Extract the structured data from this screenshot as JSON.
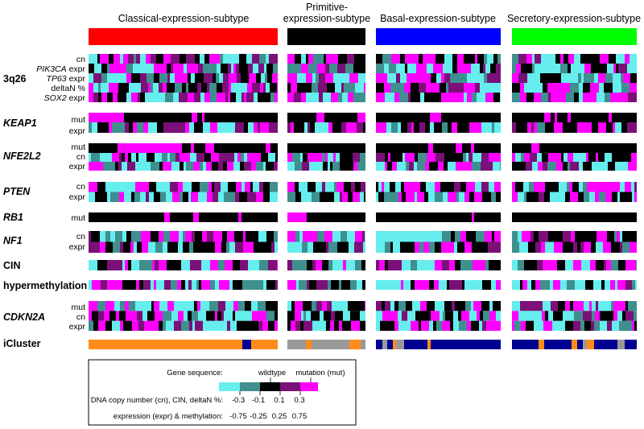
{
  "subtypes": [
    {
      "name": "Classical-expression-subtype",
      "color": "#ff0000"
    },
    {
      "name_line1": "Primitive-",
      "name_line2": "expression-subtype",
      "color": "#000000"
    },
    {
      "name": "Basal-expression-subtype",
      "color": "#0000ff"
    },
    {
      "name": "Secretory-expression-subtype",
      "color": "#00ff00"
    }
  ],
  "groups": [
    {
      "title": "3q26",
      "italic": false,
      "rows": [
        {
          "label": "cn",
          "italic_part": ""
        },
        {
          "label": " expr",
          "italic_part": "PIK3CA"
        },
        {
          "label": " expr",
          "italic_part": "TP63"
        },
        {
          "label": "deltaN %",
          "italic_part": ""
        },
        {
          "label": " expr",
          "italic_part": "SOX2"
        }
      ]
    },
    {
      "title": "KEAP1",
      "italic": true,
      "rows": [
        {
          "label": "mut",
          "italic_part": ""
        },
        {
          "label": "expr",
          "italic_part": ""
        }
      ]
    },
    {
      "title": "NFE2L2",
      "italic": true,
      "rows": [
        {
          "label": "mut",
          "italic_part": ""
        },
        {
          "label": "cn",
          "italic_part": ""
        },
        {
          "label": "expr",
          "italic_part": ""
        }
      ]
    },
    {
      "title": "PTEN",
      "italic": true,
      "rows": [
        {
          "label": "cn",
          "italic_part": ""
        },
        {
          "label": "expr",
          "italic_part": ""
        }
      ]
    },
    {
      "title": "RB1",
      "italic": true,
      "rows": [
        {
          "label": "mut",
          "italic_part": ""
        }
      ]
    },
    {
      "title": "NF1",
      "italic": true,
      "rows": [
        {
          "label": "cn",
          "italic_part": ""
        },
        {
          "label": "expr",
          "italic_part": ""
        }
      ]
    },
    {
      "title": "CIN",
      "italic": false,
      "rows": [
        {
          "label": "",
          "italic_part": ""
        }
      ]
    },
    {
      "title": "hypermethylation",
      "italic": false,
      "rows": [
        {
          "label": "",
          "italic_part": ""
        }
      ]
    },
    {
      "title": "CDKN2A",
      "italic": true,
      "rows": [
        {
          "label": "mut",
          "italic_part": ""
        },
        {
          "label": "cn",
          "italic_part": ""
        },
        {
          "label": "expr",
          "italic_part": ""
        }
      ]
    },
    {
      "title": "iCluster",
      "italic": false,
      "rows": [
        {
          "label": "",
          "italic_part": ""
        }
      ]
    }
  ],
  "legend": {
    "gene_sequence_label": "Gene sequence:",
    "wildtype_label": "wildtype",
    "mutation_label": "mutation (mut)",
    "copy_number_label": "DNA copy number (cn), CIN, deltaN %:",
    "copy_number_ticks": [
      "-0.3",
      "-0.1",
      "0.1",
      "0.3"
    ],
    "expression_label": "expression (expr) & methylation:",
    "expression_ticks": [
      "-0.75",
      "-0.25",
      "0.25",
      "0.75"
    ],
    "scale_colors": [
      "#66eeee",
      "#3f8f8f",
      "#000000",
      "#7a1078",
      "#ff00ff"
    ]
  },
  "colors": {
    "cyan": "#66eeee",
    "teal": "#3f8f8f",
    "black": "#000000",
    "purple": "#7a1078",
    "magenta": "#ff00ff",
    "orange": "#ff8c1a",
    "navy": "#000090",
    "gray": "#999999"
  }
}
